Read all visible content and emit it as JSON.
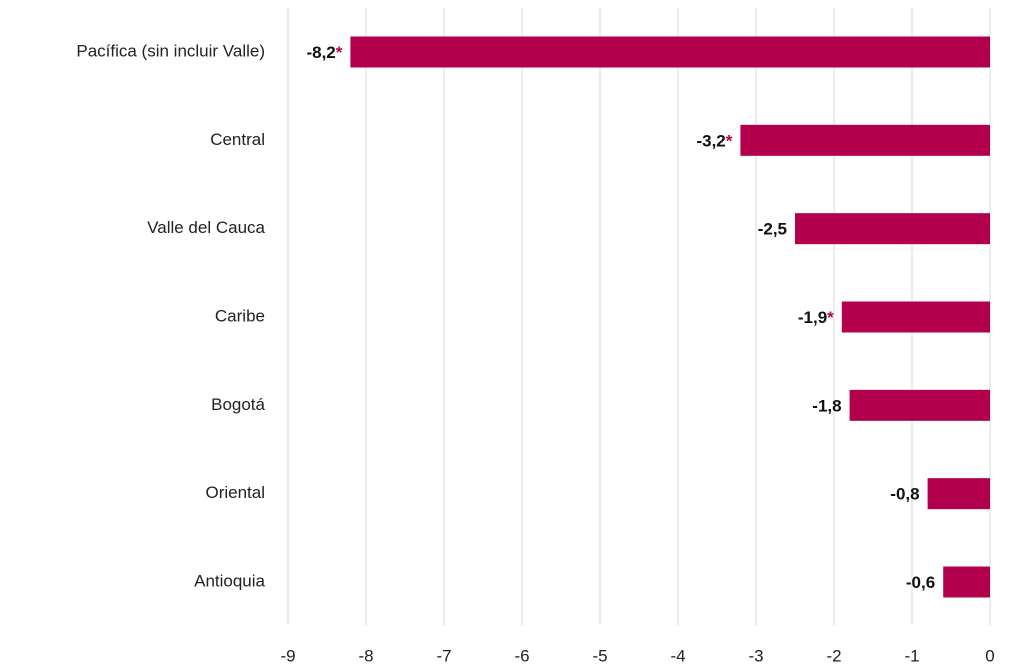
{
  "chart_data": {
    "type": "bar",
    "orientation": "horizontal",
    "categories": [
      "Pacífica (sin incluir Valle)",
      "Central",
      "Valle del Cauca",
      "Caribe",
      "Bogotá",
      "Oriental",
      "Antioquia"
    ],
    "values": [
      -8.2,
      -3.2,
      -2.5,
      -1.9,
      -1.8,
      -0.8,
      -0.6
    ],
    "value_labels": [
      "-8,2",
      "-3,2",
      "-2,5",
      "-1,9",
      "-1,8",
      "-0,8",
      "-0,6"
    ],
    "markers": [
      "*",
      "*",
      null,
      "*",
      null,
      null,
      null
    ],
    "color": "#b3004c",
    "xlim": [
      -9,
      0
    ],
    "xticks": [
      -9,
      -8,
      -7,
      -6,
      -5,
      -4,
      -3,
      -2,
      -1,
      0
    ],
    "grid": true
  }
}
